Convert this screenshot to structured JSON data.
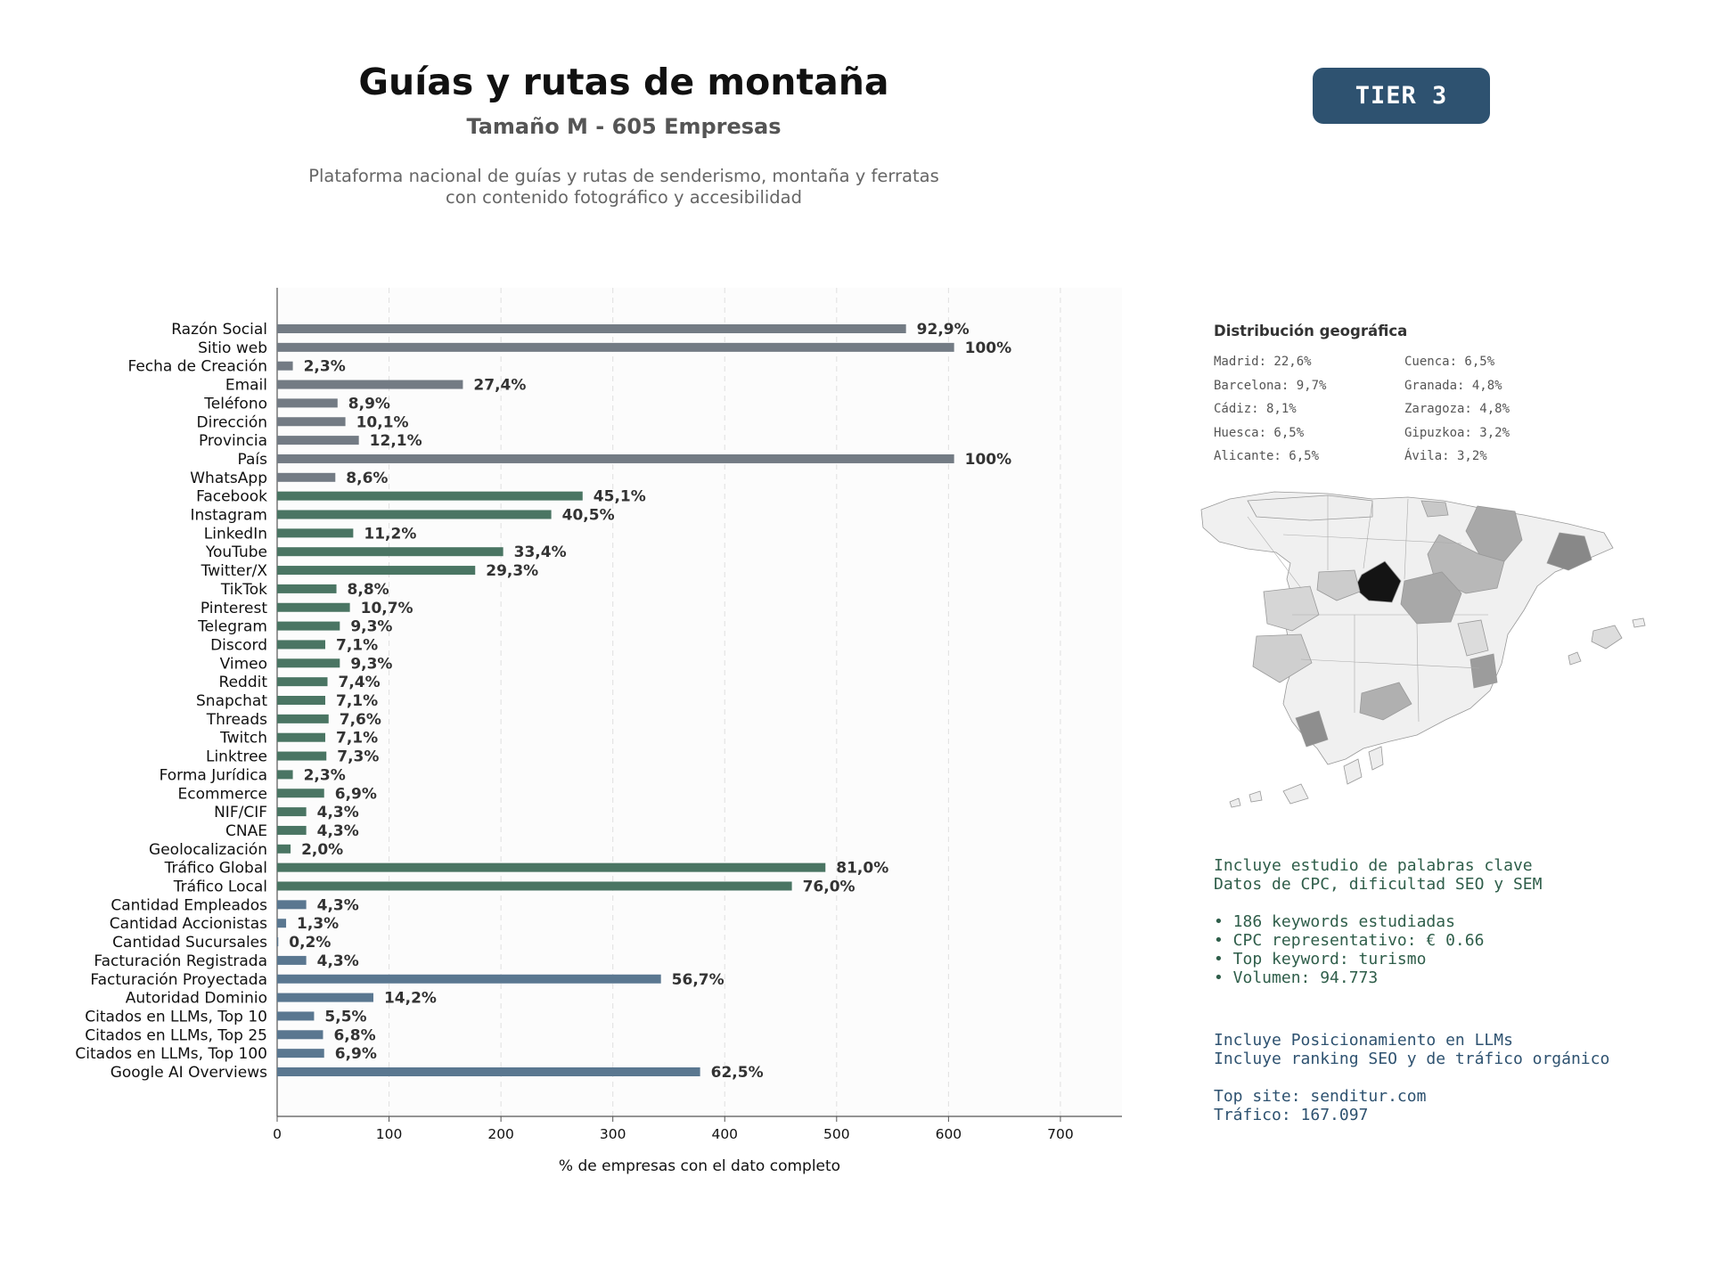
{
  "header": {
    "title": "Guías y rutas de montaña",
    "subtitle": "Tamaño M - 605 Empresas",
    "description_line1": "Plataforma nacional de guías y rutas de senderismo, montaña y ferratas",
    "description_line2": "con contenido fotográfico y accesibilidad",
    "tier_badge": "TIER 3"
  },
  "colors": {
    "gray_bar": "#737b84",
    "green_bar": "#4a7563",
    "blue_bar": "#5a7790",
    "badge": "#2e5270",
    "keyword_text": "#2f5e4a",
    "seo_text": "#2e5270"
  },
  "chart_data": {
    "type": "bar",
    "orientation": "horizontal",
    "xlabel": "% de empresas con el dato completo",
    "xlim": [
      0,
      755
    ],
    "xticks": [
      0,
      100,
      200,
      300,
      400,
      500,
      600,
      700
    ],
    "grid": "vertical dashed",
    "categories": [
      "Razón Social",
      "Sitio web",
      "Fecha de Creación",
      "Email",
      "Teléfono",
      "Dirección",
      "Provincia",
      "País",
      "WhatsApp",
      "Facebook",
      "Instagram",
      "LinkedIn",
      "YouTube",
      "Twitter/X",
      "TikTok",
      "Pinterest",
      "Telegram",
      "Discord",
      "Vimeo",
      "Reddit",
      "Snapchat",
      "Threads",
      "Twitch",
      "Linktree",
      "Forma Jurídica",
      "Ecommerce",
      "NIF/CIF",
      "CNAE",
      "Geolocalización",
      "Tráfico Global",
      "Tráfico Local",
      "Cantidad Empleados",
      "Cantidad Accionistas",
      "Cantidad Sucursales",
      "Facturación Registrada",
      "Facturación Proyectada",
      "Autoridad Dominio",
      "Citados en LLMs, Top 10",
      "Citados en LLMs, Top 25",
      "Citados en LLMs, Top 100",
      "Google AI Overviews"
    ],
    "values": [
      562,
      605,
      14,
      166,
      54,
      61,
      73,
      605,
      52,
      273,
      245,
      68,
      202,
      177,
      53,
      65,
      56,
      43,
      56,
      45,
      43,
      46,
      43,
      44,
      14,
      42,
      26,
      26,
      12,
      490,
      460,
      26,
      8,
      1,
      26,
      343,
      86,
      33,
      41,
      42,
      378
    ],
    "labels": [
      "92,9%",
      "100%",
      "2,3%",
      "27,4%",
      "8,9%",
      "10,1%",
      "12,1%",
      "100%",
      "8,6%",
      "45,1%",
      "40,5%",
      "11,2%",
      "33,4%",
      "29,3%",
      "8,8%",
      "10,7%",
      "9,3%",
      "7,1%",
      "9,3%",
      "7,4%",
      "7,1%",
      "7,6%",
      "7,1%",
      "7,3%",
      "2,3%",
      "6,9%",
      "4,3%",
      "4,3%",
      "2,0%",
      "81,0%",
      "76,0%",
      "4,3%",
      "1,3%",
      "0,2%",
      "4,3%",
      "56,7%",
      "14,2%",
      "5,5%",
      "6,8%",
      "6,9%",
      "62,5%"
    ],
    "groups": [
      "gray",
      "gray",
      "gray",
      "gray",
      "gray",
      "gray",
      "gray",
      "gray",
      "gray",
      "green",
      "green",
      "green",
      "green",
      "green",
      "green",
      "green",
      "green",
      "green",
      "green",
      "green",
      "green",
      "green",
      "green",
      "green",
      "green",
      "green",
      "green",
      "green",
      "green",
      "green",
      "green",
      "blue",
      "blue",
      "blue",
      "blue",
      "blue",
      "blue",
      "blue",
      "blue",
      "blue",
      "blue"
    ]
  },
  "geo": {
    "title": "Distribución geográfica",
    "items": [
      "Madrid: 22,6%",
      "Barcelona: 9,7%",
      "Cádiz: 8,1%",
      "Huesca: 6,5%",
      "Alicante: 6,5%",
      "Cuenca: 6,5%",
      "Granada: 4,8%",
      "Zaragoza: 4,8%",
      "Gipuzkoa: 3,2%",
      "Ávila: 3,2%"
    ]
  },
  "keywords": {
    "line1": "Incluye estudio de palabras clave",
    "line2": "Datos de CPC, dificultad SEO y SEM",
    "bullet1": "• 186 keywords estudiadas",
    "bullet2": "• CPC representativo: € 0.66",
    "bullet3": "• Top keyword: turismo",
    "bullet4": "• Volumen: 94.773"
  },
  "seo": {
    "line1": "Incluye Posicionamiento en LLMs",
    "line2": "Incluye ranking SEO y de tráfico orgánico",
    "line3": "Top site: senditur.com",
    "line4": "Tráfico: 167.097"
  }
}
